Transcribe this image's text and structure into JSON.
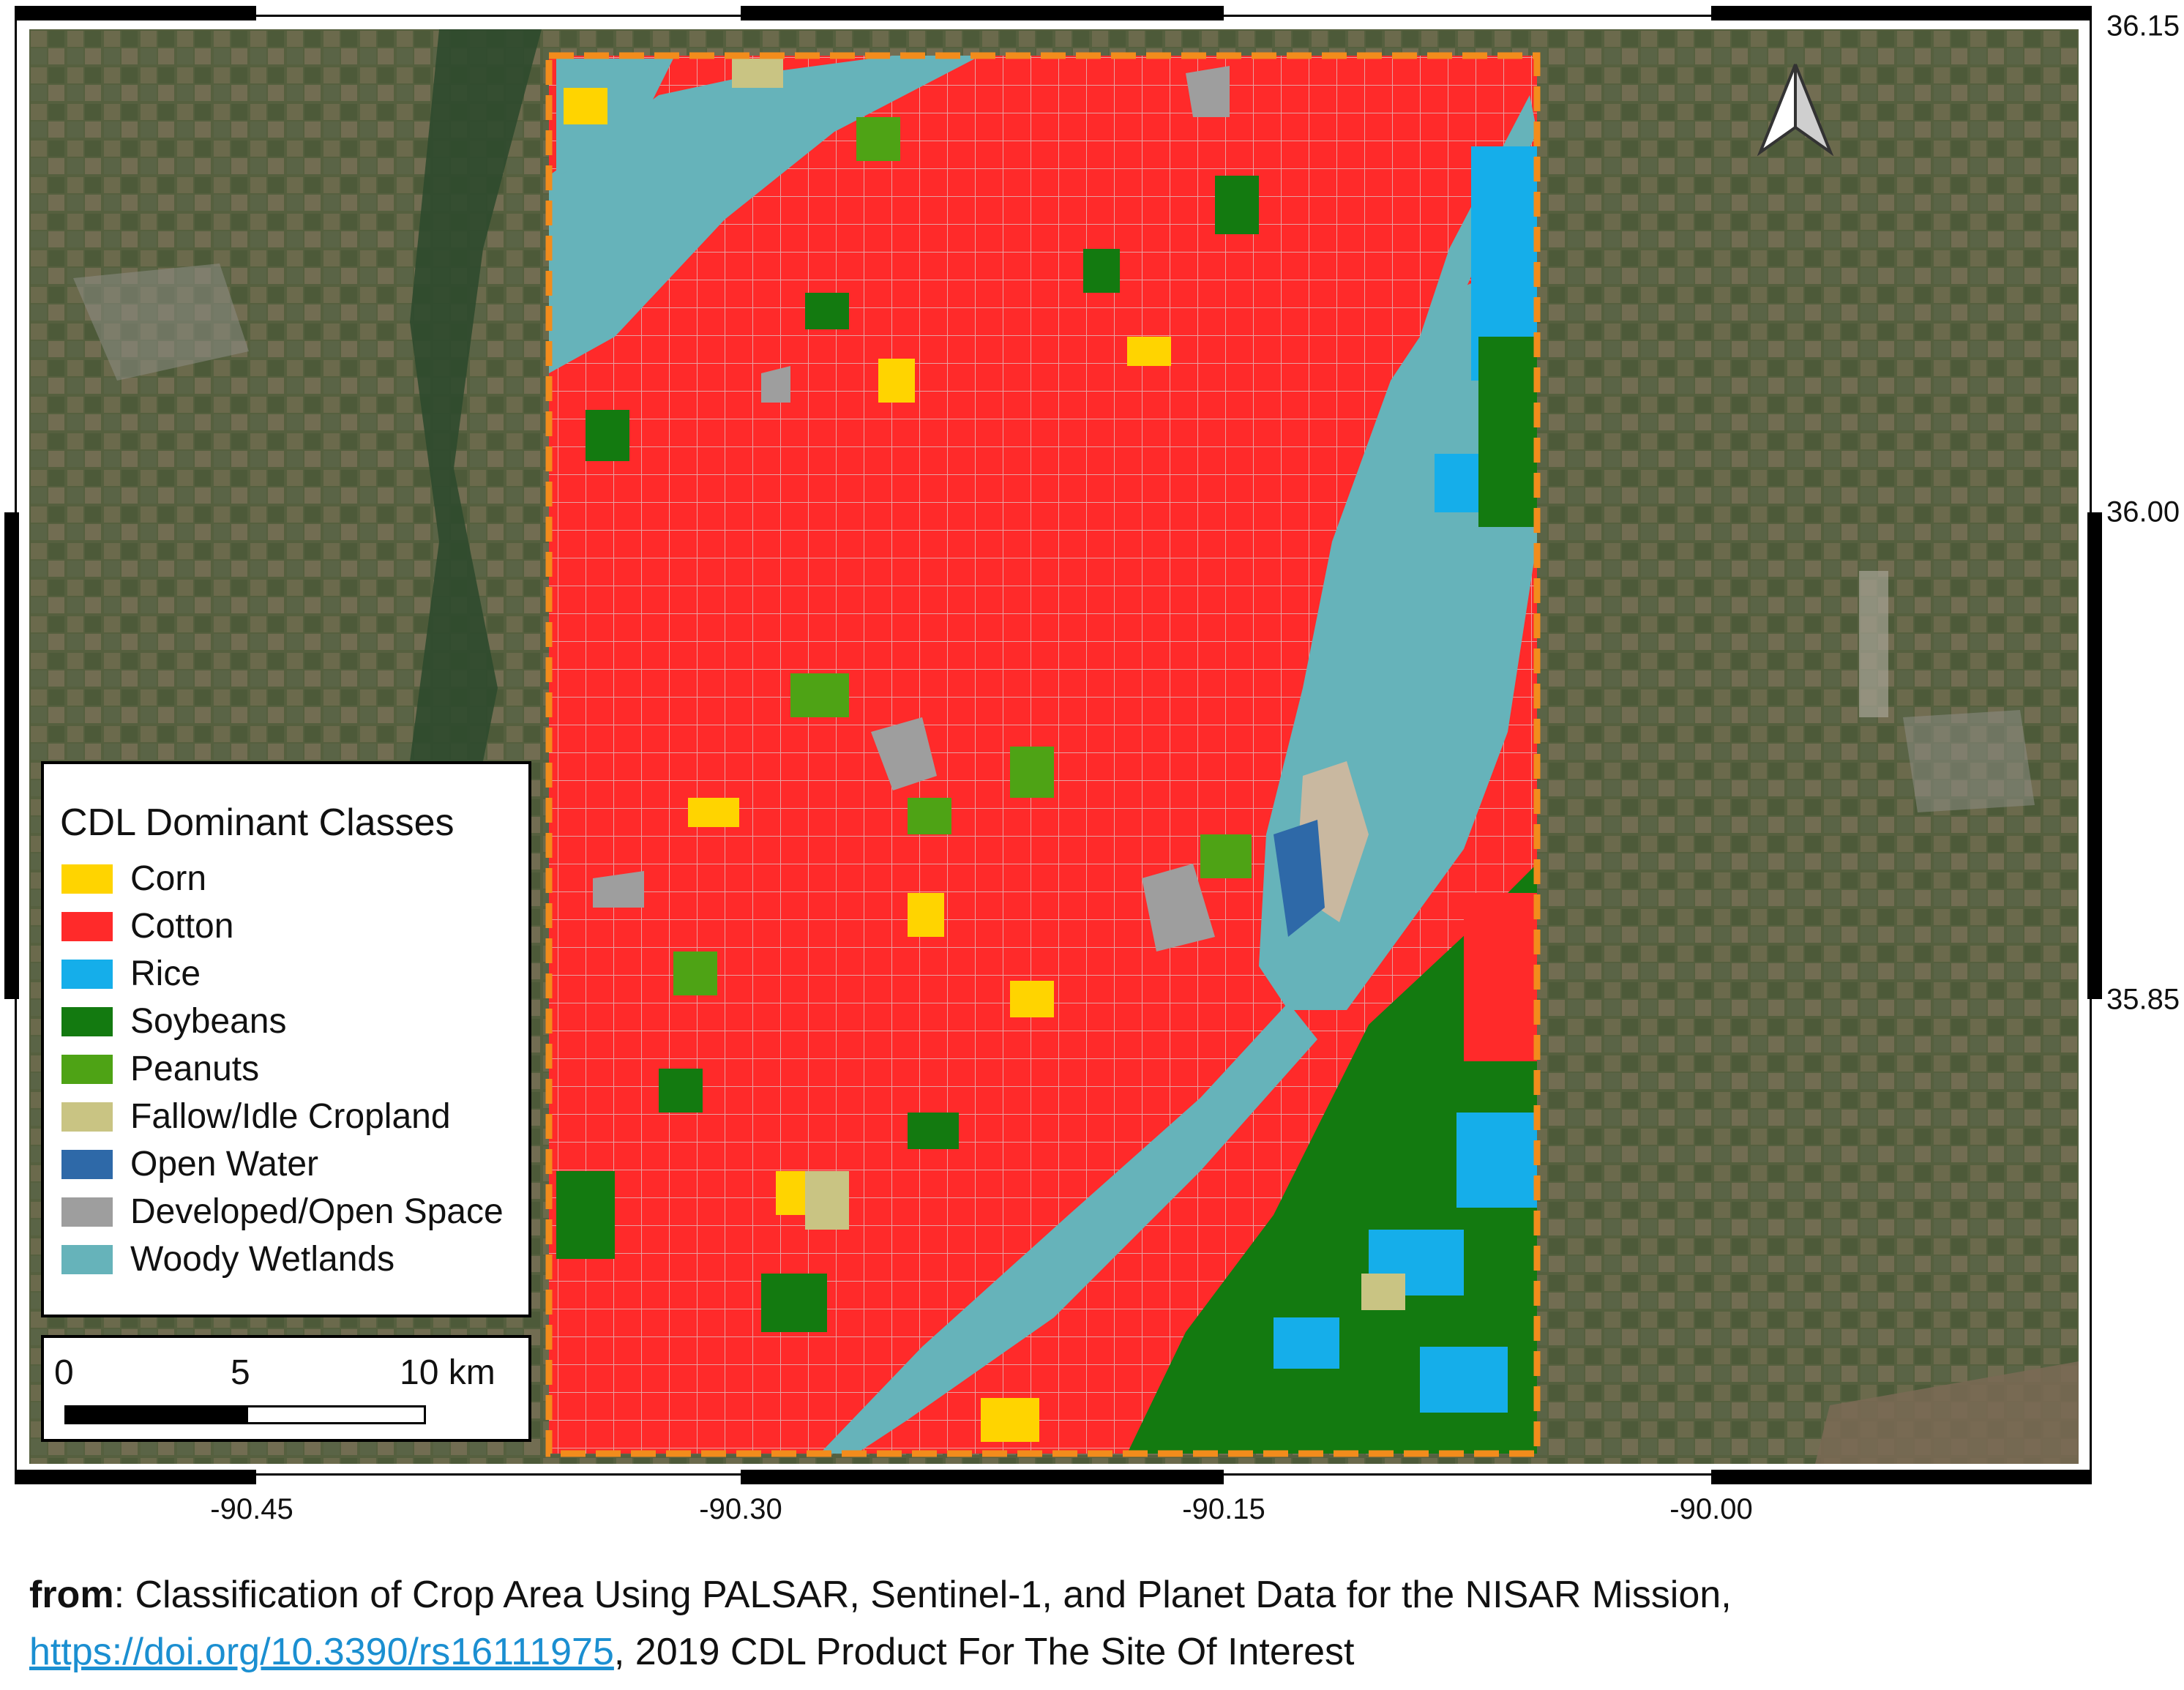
{
  "map": {
    "north_arrow_icon": "north-arrow-icon",
    "longitude_labels": [
      "-90.45",
      "-90.30",
      "-90.15",
      "-90.00"
    ],
    "latitude_labels": [
      "36.15",
      "36.00",
      "35.85"
    ]
  },
  "legend": {
    "title": "CDL Dominant Classes",
    "items": [
      {
        "label": "Corn",
        "color": "#FFD400"
      },
      {
        "label": "Cotton",
        "color": "#FF2A2A"
      },
      {
        "label": "Rice",
        "color": "#15AEEA"
      },
      {
        "label": "Soybeans",
        "color": "#137A10"
      },
      {
        "label": "Peanuts",
        "color": "#4EA315"
      },
      {
        "label": "Fallow/Idle Cropland",
        "color": "#C9C483"
      },
      {
        "label": "Open Water",
        "color": "#2E69A8"
      },
      {
        "label": "Developed/Open Space",
        "color": "#9E9E9E"
      },
      {
        "label": "Woody Wetlands",
        "color": "#66B3BA"
      }
    ]
  },
  "scale_bar": {
    "labels": [
      "0",
      "5",
      "10 km"
    ]
  },
  "caption": {
    "bold": "from",
    "text": ": Classification of Crop Area Using PALSAR, Sentinel-1, and Planet Data for the NISAR Mission,",
    "link": "https://doi.org/10.3390/rs16111975",
    "text2": ", 2019 CDL Product For The Site Of Interest"
  },
  "colors": {
    "study_area_border": "#F28C1C",
    "satellite_base": "#4E5A3C"
  }
}
